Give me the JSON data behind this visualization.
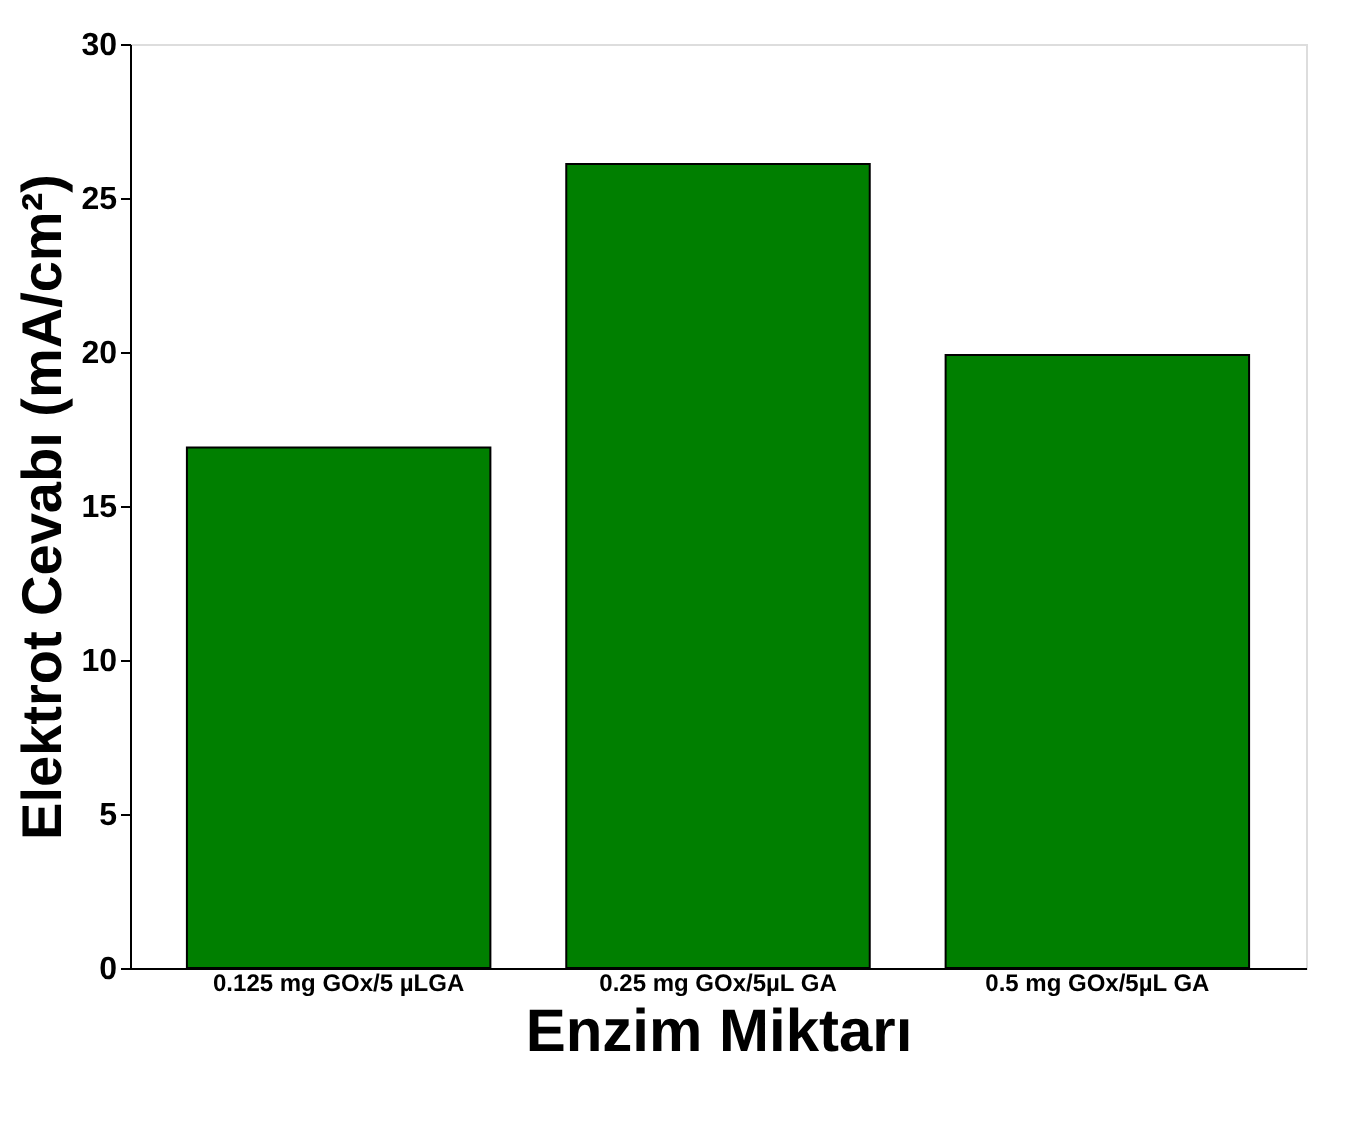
{
  "chart_data": {
    "type": "bar",
    "categories": [
      "0.125 mg GOx/5 µLGA",
      "0.25 mg GOx/5µL GA",
      "0.5 mg GOx/5µL GA"
    ],
    "values": [
      16.9,
      26.1,
      19.9
    ],
    "color": "#007f00",
    "xlabel": "Enzim Miktarı",
    "ylabel": "Elektrot Cevabı (mA/cm²)",
    "ylim": [
      0,
      30
    ],
    "yticks": [
      0,
      5,
      10,
      15,
      20,
      25,
      30
    ],
    "grid": false
  }
}
